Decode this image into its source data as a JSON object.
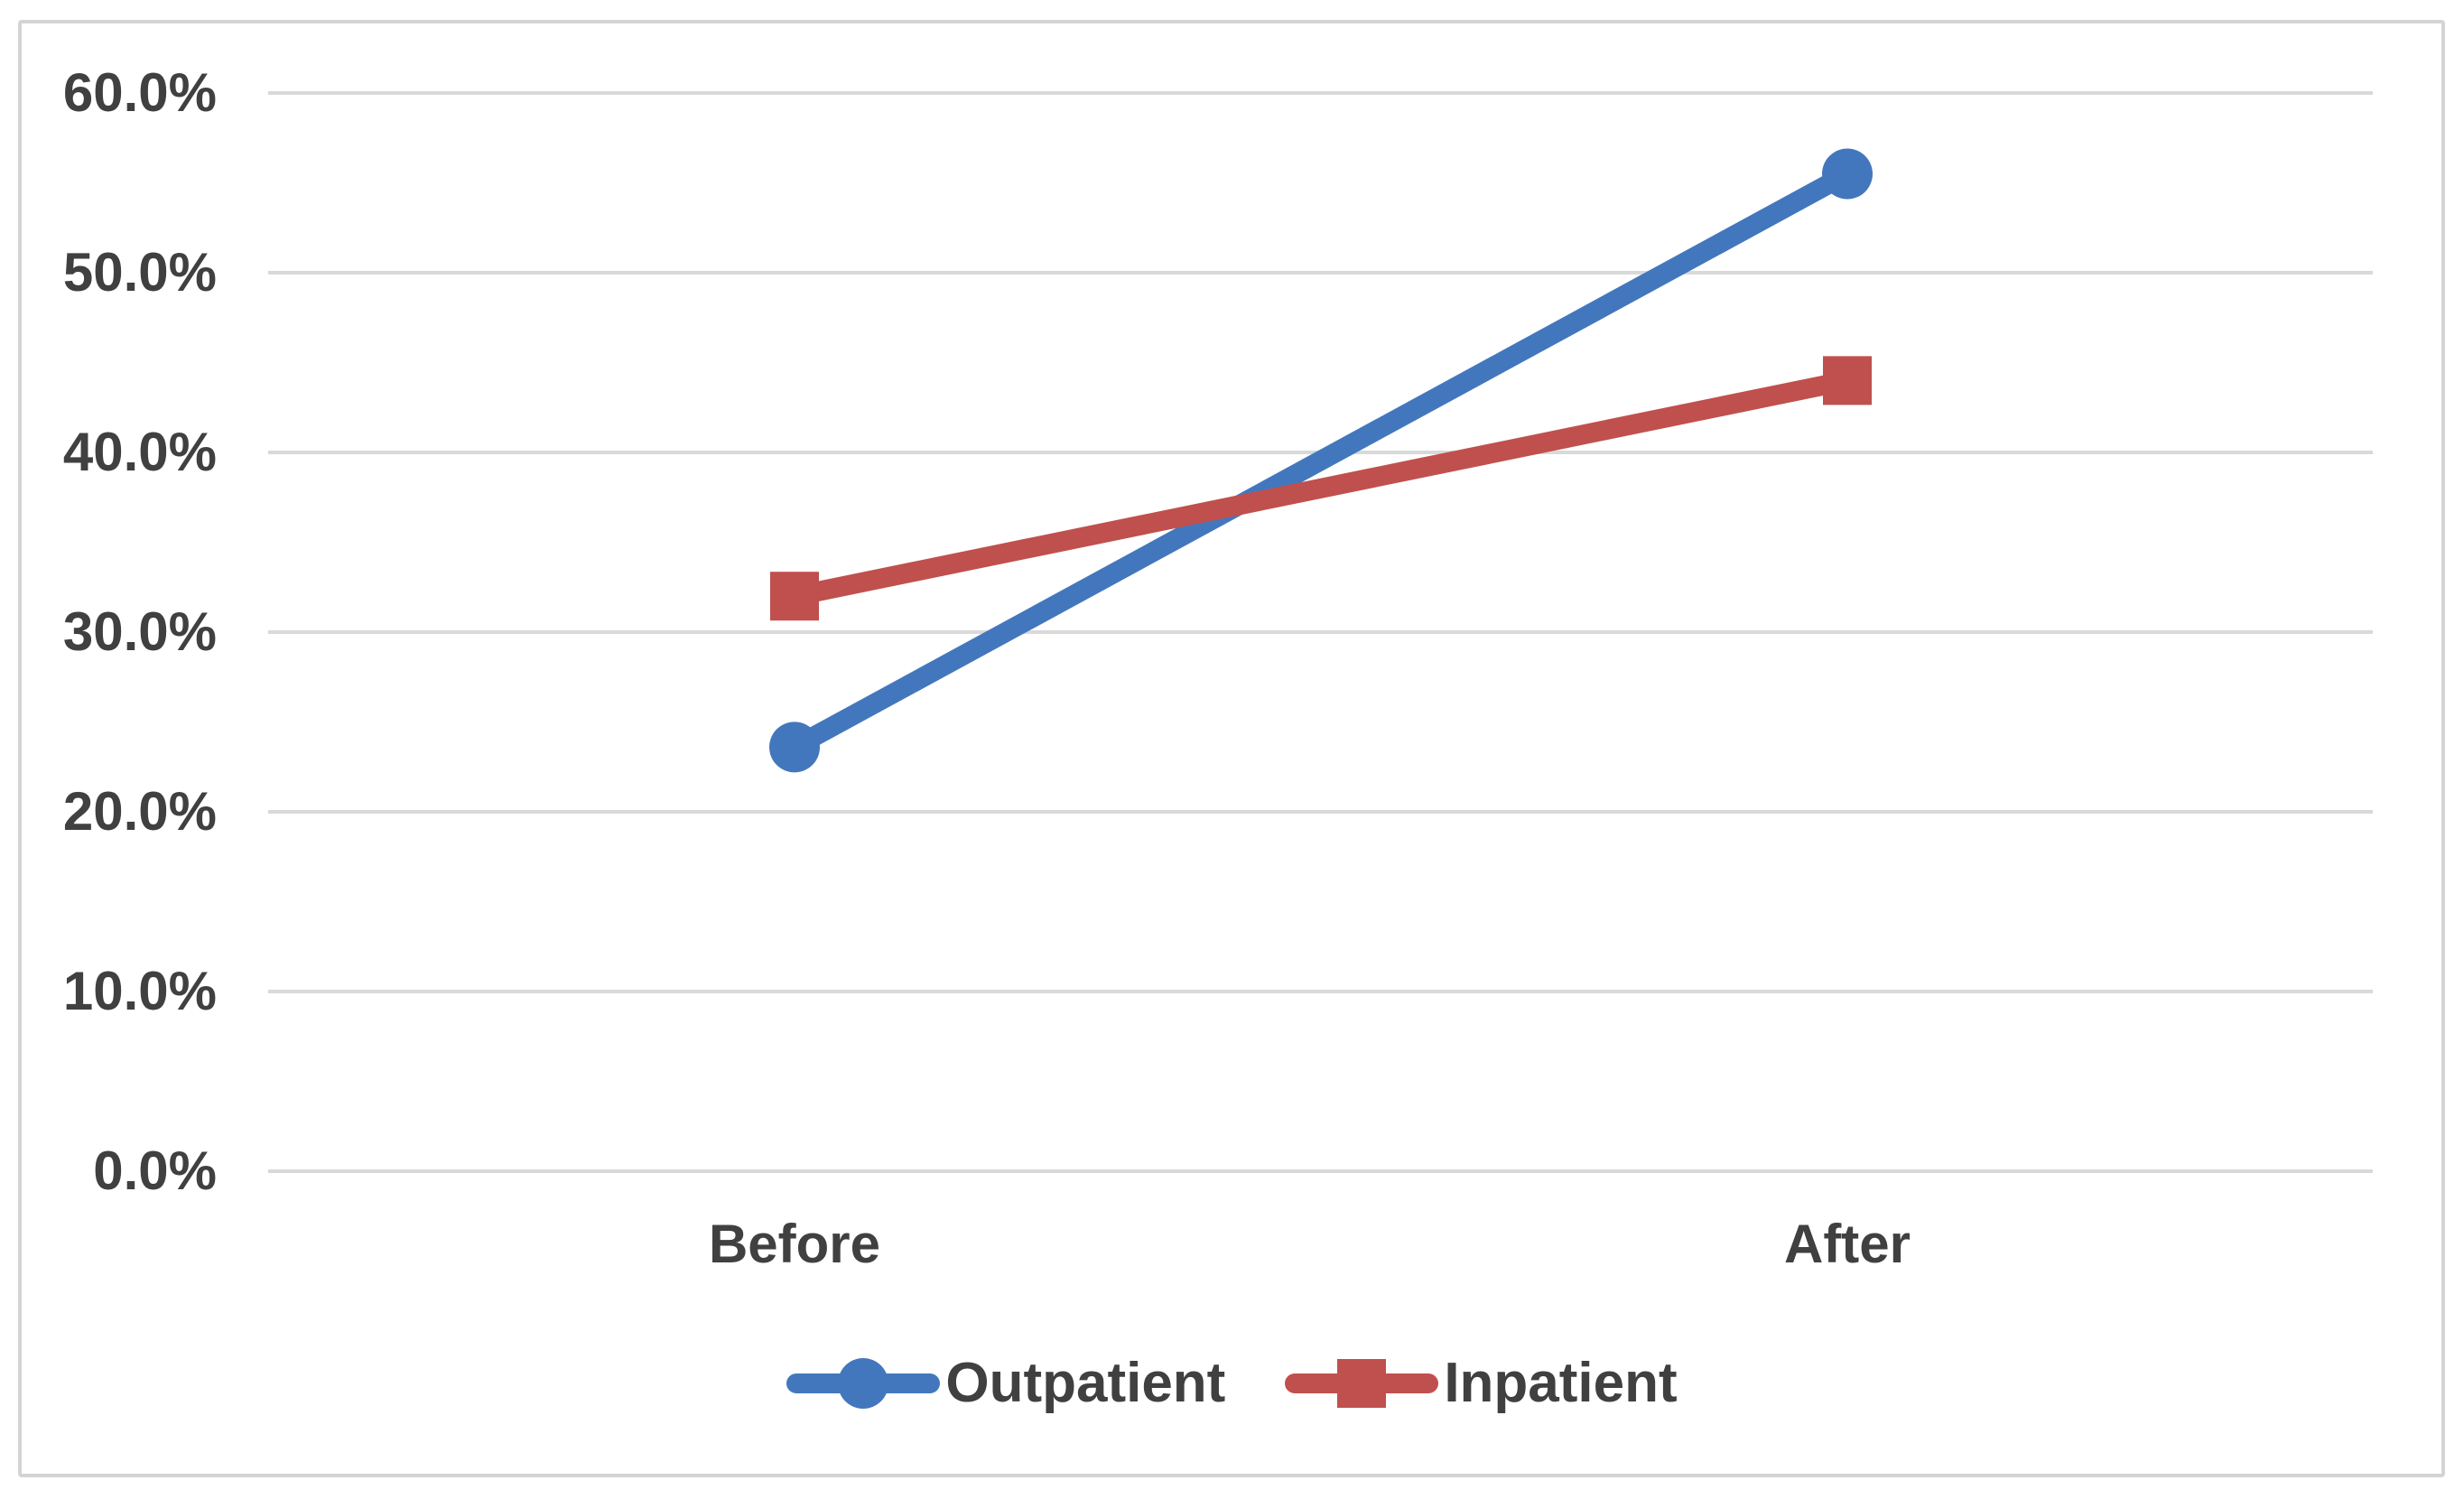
{
  "chart_data": {
    "type": "line",
    "title": "",
    "xlabel": "",
    "ylabel": "",
    "categories": [
      "Before",
      "After"
    ],
    "series": [
      {
        "name": "Outpatient",
        "values": [
          23.6,
          55.5
        ],
        "unit": "%",
        "color": "#4377BD",
        "marker": "circle"
      },
      {
        "name": "Inpatient",
        "values": [
          32.0,
          44.0
        ],
        "unit": "%",
        "color": "#C0504D",
        "marker": "square"
      }
    ],
    "ylim": [
      0,
      60
    ],
    "yticks": [
      {
        "value": 60,
        "label": "60.0%"
      },
      {
        "value": 50,
        "label": "50.0%"
      },
      {
        "value": 40,
        "label": "40.0%"
      },
      {
        "value": 30,
        "label": "30.0%"
      },
      {
        "value": 20,
        "label": "20.0%"
      },
      {
        "value": 10,
        "label": "10.0%"
      },
      {
        "value": 0,
        "label": "0.0%"
      }
    ],
    "grid": true,
    "legend_position": "bottom",
    "colors": {
      "grid": "#D9D9D9",
      "text": "#404040",
      "frame_border": "#D4D4D4",
      "background": "#FFFFFF"
    }
  }
}
